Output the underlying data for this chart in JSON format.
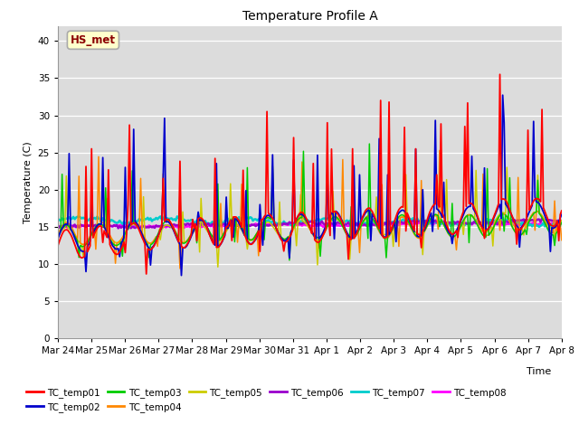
{
  "title": "Temperature Profile A",
  "xlabel": "Time",
  "ylabel": "Temperature (C)",
  "ylim": [
    0,
    42
  ],
  "yticks": [
    0,
    5,
    10,
    15,
    20,
    25,
    30,
    35,
    40
  ],
  "annotation_text": "HS_met",
  "annotation_color": "#8B0000",
  "annotation_bg": "#FFFFCC",
  "annotation_border": "#AAAAAA",
  "series_colors": {
    "TC_temp01": "#FF0000",
    "TC_temp02": "#0000CC",
    "TC_temp03": "#00CC00",
    "TC_temp04": "#FF8800",
    "TC_temp05": "#CCCC00",
    "TC_temp06": "#9900CC",
    "TC_temp07": "#00CCCC",
    "TC_temp08": "#FF00FF"
  },
  "background_color": "#DCDCDC",
  "n_points": 360,
  "x_tick_labels": [
    "Mar 24",
    "Mar 25",
    "Mar 26",
    "Mar 27",
    "Mar 28",
    "Mar 29",
    "Mar 30",
    "Mar 31",
    "Apr 1",
    "Apr 2",
    "Apr 3",
    "Apr 4",
    "Apr 5",
    "Apr 6",
    "Apr 7",
    "Apr 8"
  ]
}
